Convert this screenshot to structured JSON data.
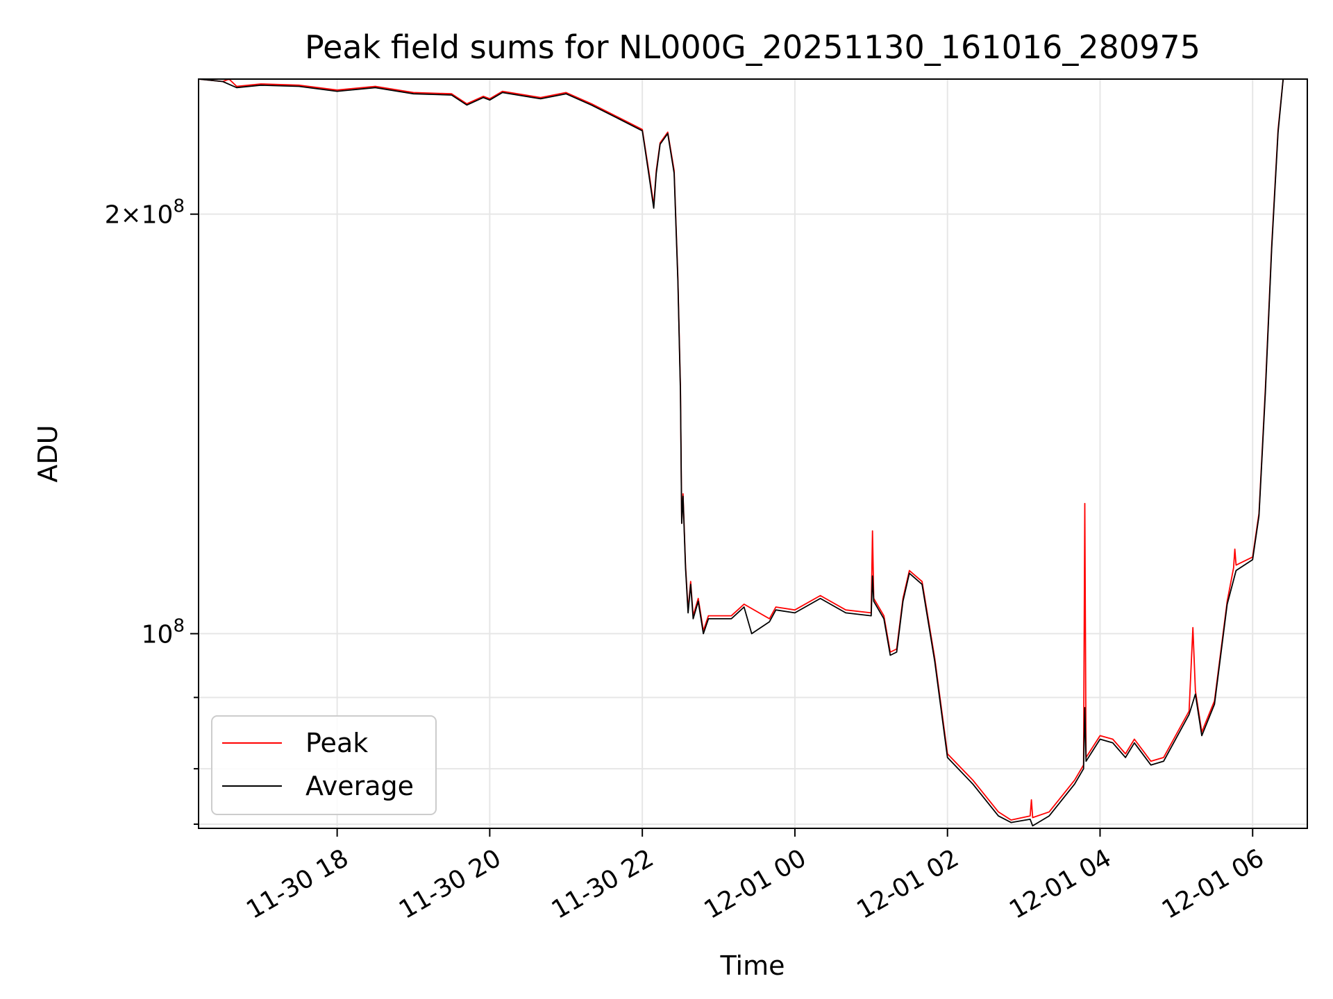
{
  "chart_data": {
    "type": "line",
    "title": "Peak field sums for NL000G_20251130_161016_280975",
    "xlabel": "Time",
    "ylabel": "ADU",
    "yscale": "log",
    "ylim": [
      72500000,
      250000000
    ],
    "xlim": [
      "2025-11-30 16:11",
      "2025-12-01 06:43"
    ],
    "x_ticks": [
      {
        "t": "2025-11-30 18:00",
        "label": "11-30 18"
      },
      {
        "t": "2025-11-30 20:00",
        "label": "11-30 20"
      },
      {
        "t": "2025-11-30 22:00",
        "label": "11-30 22"
      },
      {
        "t": "2025-12-01 00:00",
        "label": "12-01 00"
      },
      {
        "t": "2025-12-01 02:00",
        "label": "12-01 02"
      },
      {
        "t": "2025-12-01 04:00",
        "label": "12-01 04"
      },
      {
        "t": "2025-12-01 06:00",
        "label": "12-01 06"
      }
    ],
    "y_major_ticks": [
      {
        "v": 100000000,
        "base": "10",
        "exp": "8"
      },
      {
        "v": 200000000,
        "mant": "2",
        "base": "10",
        "exp": "8"
      }
    ],
    "y_minor_ticks": [
      73000000,
      80000000,
      90000000
    ],
    "grid": true,
    "legend": {
      "placement": "lower-left",
      "entries": [
        "Peak",
        "Average"
      ]
    },
    "series": [
      {
        "name": "Peak",
        "color": "#ff0000",
        "points": [
          [
            "2025-11-30 16:11",
            250000000
          ],
          [
            "2025-11-30 16:30",
            249000000
          ],
          [
            "2025-11-30 16:35",
            250000000
          ],
          [
            "2025-11-30 16:41",
            247000000
          ],
          [
            "2025-11-30 17:00",
            248000000
          ],
          [
            "2025-11-30 17:30",
            247500000
          ],
          [
            "2025-11-30 18:00",
            245500000
          ],
          [
            "2025-11-30 18:30",
            247000000
          ],
          [
            "2025-11-30 19:00",
            244500000
          ],
          [
            "2025-11-30 19:30",
            244000000
          ],
          [
            "2025-11-30 19:42",
            240000000
          ],
          [
            "2025-11-30 19:55",
            243000000
          ],
          [
            "2025-11-30 20:00",
            242000000
          ],
          [
            "2025-11-30 20:10",
            245000000
          ],
          [
            "2025-11-30 20:40",
            242500000
          ],
          [
            "2025-11-30 21:00",
            244500000
          ],
          [
            "2025-11-30 21:20",
            240000000
          ],
          [
            "2025-11-30 21:40",
            235000000
          ],
          [
            "2025-11-30 22:00",
            230000000
          ],
          [
            "2025-11-30 22:05",
            215000000
          ],
          [
            "2025-11-30 22:09",
            203000000
          ],
          [
            "2025-11-30 22:11",
            215000000
          ],
          [
            "2025-11-30 22:14",
            225000000
          ],
          [
            "2025-11-30 22:20",
            229000000
          ],
          [
            "2025-11-30 22:25",
            215000000
          ],
          [
            "2025-11-30 22:28",
            180000000
          ],
          [
            "2025-11-30 22:30",
            150000000
          ],
          [
            "2025-11-30 22:31",
            120000000
          ],
          [
            "2025-11-30 22:32",
            126000000
          ],
          [
            "2025-11-30 22:34",
            112000000
          ],
          [
            "2025-11-30 22:36",
            104000000
          ],
          [
            "2025-11-30 22:38",
            109000000
          ],
          [
            "2025-11-30 22:40",
            103000000
          ],
          [
            "2025-11-30 22:44",
            106000000
          ],
          [
            "2025-11-30 22:48",
            100500000
          ],
          [
            "2025-11-30 22:52",
            103000000
          ],
          [
            "2025-11-30 23:10",
            103000000
          ],
          [
            "2025-11-30 23:20",
            105000000
          ],
          [
            "2025-11-30 23:40",
            102500000
          ],
          [
            "2025-11-30 23:45",
            104500000
          ],
          [
            "2025-12-01 00:00",
            104000000
          ],
          [
            "2025-12-01 00:20",
            106500000
          ],
          [
            "2025-12-01 00:40",
            104000000
          ],
          [
            "2025-12-01 01:00",
            103500000
          ],
          [
            "2025-12-01 01:01",
            118500000
          ],
          [
            "2025-12-01 01:02",
            106000000
          ],
          [
            "2025-12-01 01:10",
            103000000
          ],
          [
            "2025-12-01 01:15",
            97000000
          ],
          [
            "2025-12-01 01:20",
            97500000
          ],
          [
            "2025-12-01 01:25",
            106000000
          ],
          [
            "2025-12-01 01:30",
            111000000
          ],
          [
            "2025-12-01 01:40",
            109000000
          ],
          [
            "2025-12-01 01:50",
            96000000
          ],
          [
            "2025-12-01 02:00",
            82000000
          ],
          [
            "2025-12-01 02:20",
            78500000
          ],
          [
            "2025-12-01 02:40",
            74500000
          ],
          [
            "2025-12-01 02:50",
            73500000
          ],
          [
            "2025-12-01 03:05",
            74000000
          ],
          [
            "2025-12-01 03:06",
            76000000
          ],
          [
            "2025-12-01 03:07",
            73800000
          ],
          [
            "2025-12-01 03:20",
            74500000
          ],
          [
            "2025-12-01 03:40",
            78500000
          ],
          [
            "2025-12-01 03:47",
            80500000
          ],
          [
            "2025-12-01 03:48",
            124000000
          ],
          [
            "2025-12-01 03:49",
            81500000
          ],
          [
            "2025-12-01 04:00",
            84500000
          ],
          [
            "2025-12-01 04:10",
            84000000
          ],
          [
            "2025-12-01 04:20",
            82000000
          ],
          [
            "2025-12-01 04:27",
            84000000
          ],
          [
            "2025-12-01 04:40",
            81000000
          ],
          [
            "2025-12-01 04:50",
            81500000
          ],
          [
            "2025-12-01 05:10",
            88000000
          ],
          [
            "2025-12-01 05:13",
            101000000
          ],
          [
            "2025-12-01 05:15",
            91000000
          ],
          [
            "2025-12-01 05:20",
            85000000
          ],
          [
            "2025-12-01 05:30",
            89500000
          ],
          [
            "2025-12-01 05:40",
            105500000
          ],
          [
            "2025-12-01 05:45",
            111500000
          ],
          [
            "2025-12-01 05:46",
            115000000
          ],
          [
            "2025-12-01 05:47",
            112000000
          ],
          [
            "2025-12-01 06:00",
            113500000
          ],
          [
            "2025-12-01 06:05",
            122000000
          ],
          [
            "2025-12-01 06:10",
            150000000
          ],
          [
            "2025-12-01 06:15",
            190000000
          ],
          [
            "2025-12-01 06:20",
            230000000
          ],
          [
            "2025-12-01 06:24",
            250000000
          ]
        ]
      },
      {
        "name": "Average",
        "color": "#000000",
        "points": [
          [
            "2025-11-30 16:11",
            250000000
          ],
          [
            "2025-11-30 16:30",
            249000000
          ],
          [
            "2025-11-30 16:41",
            246500000
          ],
          [
            "2025-11-30 17:00",
            247500000
          ],
          [
            "2025-11-30 17:30",
            247000000
          ],
          [
            "2025-11-30 18:00",
            245000000
          ],
          [
            "2025-11-30 18:30",
            246500000
          ],
          [
            "2025-11-30 19:00",
            244000000
          ],
          [
            "2025-11-30 19:30",
            243500000
          ],
          [
            "2025-11-30 19:42",
            239500000
          ],
          [
            "2025-11-30 19:55",
            242500000
          ],
          [
            "2025-11-30 20:00",
            241500000
          ],
          [
            "2025-11-30 20:10",
            244500000
          ],
          [
            "2025-11-30 20:40",
            242000000
          ],
          [
            "2025-11-30 21:00",
            244000000
          ],
          [
            "2025-11-30 21:20",
            239500000
          ],
          [
            "2025-11-30 21:40",
            234500000
          ],
          [
            "2025-11-30 22:00",
            229500000
          ],
          [
            "2025-11-30 22:05",
            214000000
          ],
          [
            "2025-11-30 22:09",
            202000000
          ],
          [
            "2025-11-30 22:11",
            214000000
          ],
          [
            "2025-11-30 22:14",
            224500000
          ],
          [
            "2025-11-30 22:20",
            228500000
          ],
          [
            "2025-11-30 22:25",
            214000000
          ],
          [
            "2025-11-30 22:28",
            179000000
          ],
          [
            "2025-11-30 22:30",
            149000000
          ],
          [
            "2025-11-30 22:31",
            120000000
          ],
          [
            "2025-11-30 22:32",
            125500000
          ],
          [
            "2025-11-30 22:34",
            111500000
          ],
          [
            "2025-11-30 22:36",
            103500000
          ],
          [
            "2025-11-30 22:38",
            108500000
          ],
          [
            "2025-11-30 22:40",
            102500000
          ],
          [
            "2025-11-30 22:44",
            105500000
          ],
          [
            "2025-11-30 22:48",
            100000000
          ],
          [
            "2025-11-30 22:52",
            102500000
          ],
          [
            "2025-11-30 23:10",
            102500000
          ],
          [
            "2025-11-30 23:20",
            104500000
          ],
          [
            "2025-11-30 23:26",
            100000000
          ],
          [
            "2025-11-30 23:40",
            102000000
          ],
          [
            "2025-11-30 23:45",
            104000000
          ],
          [
            "2025-12-01 00:00",
            103500000
          ],
          [
            "2025-12-01 00:20",
            106000000
          ],
          [
            "2025-12-01 00:40",
            103500000
          ],
          [
            "2025-12-01 01:00",
            103000000
          ],
          [
            "2025-12-01 01:01",
            110000000
          ],
          [
            "2025-12-01 01:02",
            105500000
          ],
          [
            "2025-12-01 01:10",
            102500000
          ],
          [
            "2025-12-01 01:15",
            96500000
          ],
          [
            "2025-12-01 01:20",
            97000000
          ],
          [
            "2025-12-01 01:25",
            105500000
          ],
          [
            "2025-12-01 01:30",
            110500000
          ],
          [
            "2025-12-01 01:40",
            108500000
          ],
          [
            "2025-12-01 01:50",
            95500000
          ],
          [
            "2025-12-01 02:00",
            81500000
          ],
          [
            "2025-12-01 02:20",
            78000000
          ],
          [
            "2025-12-01 02:40",
            74000000
          ],
          [
            "2025-12-01 02:50",
            73200000
          ],
          [
            "2025-12-01 03:05",
            73600000
          ],
          [
            "2025-12-01 03:07",
            72800000
          ],
          [
            "2025-12-01 03:20",
            74000000
          ],
          [
            "2025-12-01 03:40",
            78000000
          ],
          [
            "2025-12-01 03:47",
            80000000
          ],
          [
            "2025-12-01 03:48",
            88500000
          ],
          [
            "2025-12-01 03:49",
            81000000
          ],
          [
            "2025-12-01 04:00",
            84000000
          ],
          [
            "2025-12-01 04:10",
            83500000
          ],
          [
            "2025-12-01 04:20",
            81500000
          ],
          [
            "2025-12-01 04:27",
            83500000
          ],
          [
            "2025-12-01 04:40",
            80500000
          ],
          [
            "2025-12-01 04:50",
            81000000
          ],
          [
            "2025-12-01 05:10",
            87500000
          ],
          [
            "2025-12-01 05:15",
            90500000
          ],
          [
            "2025-12-01 05:20",
            84500000
          ],
          [
            "2025-12-01 05:30",
            89000000
          ],
          [
            "2025-12-01 05:40",
            105000000
          ],
          [
            "2025-12-01 05:47",
            111000000
          ],
          [
            "2025-12-01 06:00",
            113000000
          ],
          [
            "2025-12-01 06:05",
            121500000
          ],
          [
            "2025-12-01 06:10",
            149000000
          ],
          [
            "2025-12-01 06:15",
            189000000
          ],
          [
            "2025-12-01 06:20",
            229000000
          ],
          [
            "2025-12-01 06:24",
            250000000
          ]
        ]
      }
    ]
  }
}
